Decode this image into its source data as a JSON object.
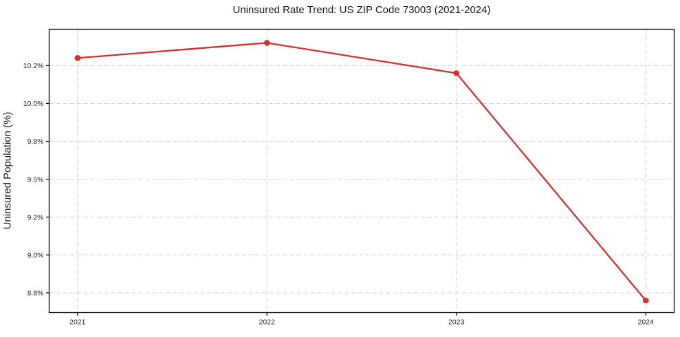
{
  "chart_data": {
    "type": "line",
    "title": "Uninsured Rate Trend: US ZIP Code 73003 (2021-2024)",
    "xlabel": "",
    "ylabel": "Uninsured Population (%)",
    "x": [
      2021,
      2022,
      2023,
      2024
    ],
    "x_tick_labels": [
      "2021",
      "2022",
      "2023",
      "2024"
    ],
    "series": [
      {
        "name": "Uninsured rate",
        "values": [
          10.3,
          10.4,
          10.2,
          8.7
        ]
      }
    ],
    "y_ticks": [
      {
        "value": 8.75,
        "label": "8.8%"
      },
      {
        "value": 9.0,
        "label": "9.0%"
      },
      {
        "value": 9.25,
        "label": "9.2%"
      },
      {
        "value": 9.5,
        "label": "9.5%"
      },
      {
        "value": 9.75,
        "label": "9.8%"
      },
      {
        "value": 10.0,
        "label": "10.0%"
      },
      {
        "value": 10.25,
        "label": "10.2%"
      }
    ],
    "xlim": [
      2020.85,
      2024.15
    ],
    "ylim": [
      8.62,
      10.49
    ],
    "grid": true,
    "grid_style": "dashed",
    "legend": "none",
    "marker": "circle",
    "colors": {
      "line": "#d62f2f",
      "marker": "#d62f2f",
      "grid": "#d4d4d4",
      "spine": "#000000",
      "text": "#262626",
      "background": "#ffffff"
    }
  }
}
